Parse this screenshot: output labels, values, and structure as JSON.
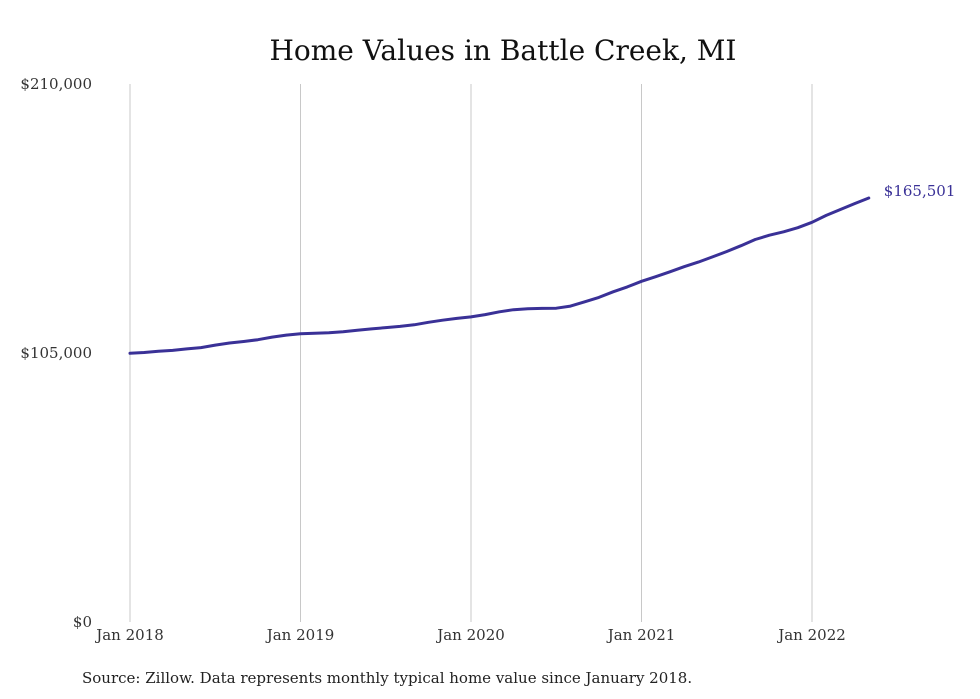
{
  "chart_data": {
    "type": "line",
    "title": "Home Values in Battle Creek, MI",
    "xlabel": "",
    "ylabel": "",
    "x_ticks": [
      "Jan 2018",
      "Jan 2019",
      "Jan 2020",
      "Jan 2021",
      "Jan 2022"
    ],
    "y_ticks": [
      "$0",
      "$105,000",
      "$210,000"
    ],
    "ylim": [
      0,
      210000
    ],
    "xlim": [
      "2018-01",
      "2022-05"
    ],
    "grid": {
      "vertical": true,
      "horizontal": false
    },
    "line_color": "#3a3197",
    "end_label": "$165,501",
    "series": [
      {
        "x": [
          "2018-01",
          "2018-02",
          "2018-03",
          "2018-04",
          "2018-05",
          "2018-06",
          "2018-07",
          "2018-08",
          "2018-09",
          "2018-10",
          "2018-11",
          "2018-12",
          "2019-01",
          "2019-02",
          "2019-03",
          "2019-04",
          "2019-05",
          "2019-06",
          "2019-07",
          "2019-08",
          "2019-09",
          "2019-10",
          "2019-11",
          "2019-12",
          "2020-01",
          "2020-02",
          "2020-03",
          "2020-04",
          "2020-05",
          "2020-06",
          "2020-07",
          "2020-08",
          "2020-09",
          "2020-10",
          "2020-11",
          "2020-12",
          "2021-01",
          "2021-02",
          "2021-03",
          "2021-04",
          "2021-05",
          "2021-06",
          "2021-07",
          "2021-08",
          "2021-09",
          "2021-10",
          "2021-11",
          "2021-12",
          "2022-01",
          "2022-02",
          "2022-03",
          "2022-04",
          "2022-05"
        ],
        "values": [
          104900,
          105200,
          105700,
          106000,
          106600,
          107100,
          108100,
          108900,
          109500,
          110200,
          111200,
          112000,
          112500,
          112700,
          112900,
          113300,
          113900,
          114400,
          114900,
          115400,
          116000,
          117000,
          117800,
          118500,
          119100,
          120000,
          121100,
          121900,
          122300,
          122400,
          122500,
          123300,
          125000,
          126700,
          128900,
          130800,
          133000,
          134800,
          136700,
          138700,
          140500,
          142500,
          144600,
          146900,
          149300,
          151000,
          152300,
          153900,
          156000,
          158700,
          161000,
          163300,
          165501
        ]
      }
    ]
  },
  "source_note": "Source: Zillow. Data represents monthly typical home value since January 2018."
}
